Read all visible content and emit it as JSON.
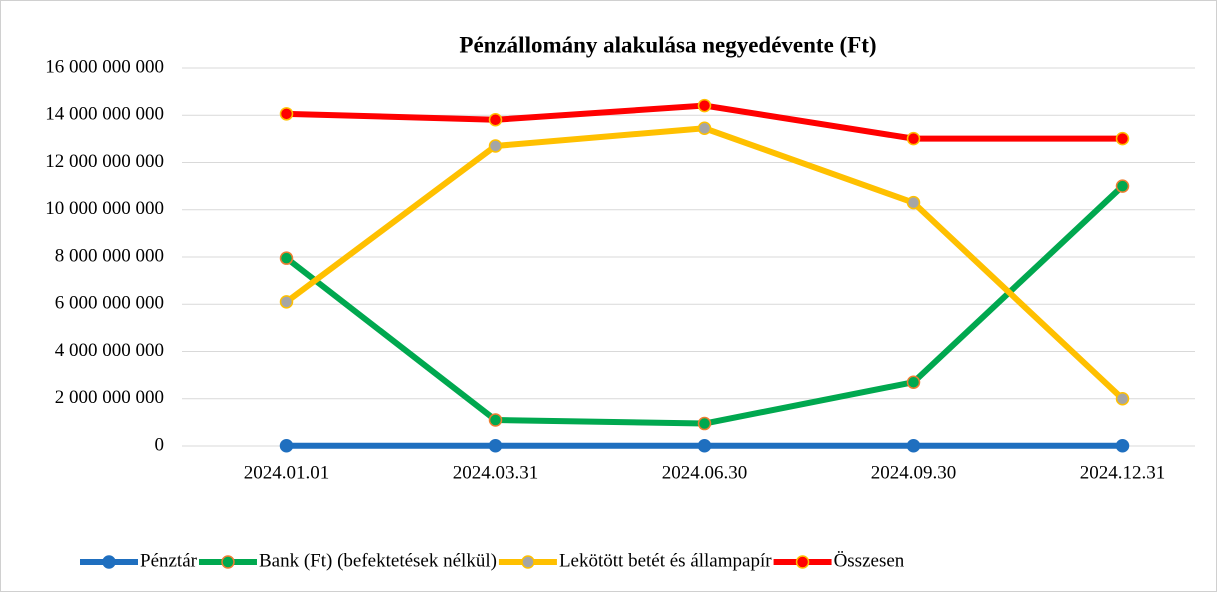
{
  "chart_data": {
    "type": "line",
    "title": "Pénzállomány alakulása negyedévente (Ft)",
    "categories": [
      "2024.01.01",
      "2024.03.31",
      "2024.06.30",
      "2024.09.30",
      "2024.12.31"
    ],
    "series": [
      {
        "name": "Pénztár",
        "color": "#1f6fbf",
        "marker_fill": "#1f6fbf",
        "marker_edge": "#1f6fbf",
        "values": [
          10000000,
          10000000,
          10000000,
          10000000,
          10000000
        ]
      },
      {
        "name": "Bank (Ft) (befektetések nélkül)",
        "color": "#00a84f",
        "marker_fill": "#00a84f",
        "marker_edge": "#ed7d31",
        "values": [
          7950000000,
          1100000000,
          950000000,
          2700000000,
          11000000000
        ]
      },
      {
        "name": "Lekötött betét és állampapír",
        "color": "#ffc000",
        "marker_fill": "#a5a5a5",
        "marker_edge": "#ffc000",
        "values": [
          6100000000,
          12700000000,
          13450000000,
          10300000000,
          2000000000
        ]
      },
      {
        "name": "Összesen",
        "color": "#ff0000",
        "marker_fill": "#ff0000",
        "marker_edge": "#ffc000",
        "values": [
          14060000000,
          13810000000,
          14410000000,
          13010000000,
          13010000000
        ]
      }
    ],
    "ylim": [
      0,
      16000000000
    ],
    "yticks": [
      {
        "value": 0,
        "label": "0"
      },
      {
        "value": 2000000000,
        "label": "2 000 000 000"
      },
      {
        "value": 4000000000,
        "label": "4 000 000 000"
      },
      {
        "value": 6000000000,
        "label": "6 000 000 000"
      },
      {
        "value": 8000000000,
        "label": "8 000 000 000"
      },
      {
        "value": 10000000000,
        "label": "10 000 000 000"
      },
      {
        "value": 12000000000,
        "label": "12 000 000 000"
      },
      {
        "value": 14000000000,
        "label": "14 000 000 000"
      },
      {
        "value": 16000000000,
        "label": "16 000 000 000"
      }
    ],
    "grid": true,
    "legend": "bottom"
  }
}
